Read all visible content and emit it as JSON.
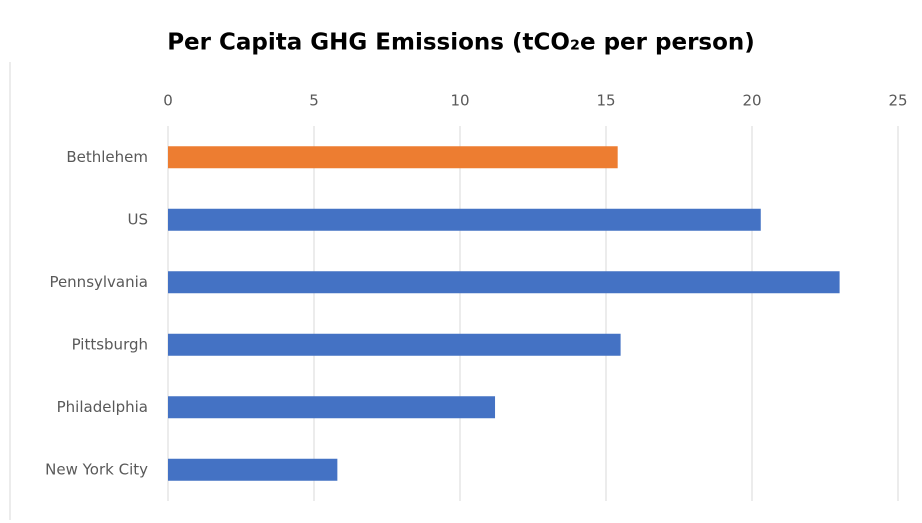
{
  "chart_data": {
    "type": "hbar",
    "title": "Per Capita GHG Emissions (tCO₂e per person)",
    "categories": [
      "Bethlehem",
      "US",
      "Pennsylvania",
      "Pittsburgh",
      "Philadelphia",
      "New York City"
    ],
    "values": [
      15.4,
      20.3,
      23.0,
      15.5,
      11.2,
      5.8
    ],
    "colors": [
      "#ed7d31",
      "#4472c4",
      "#4472c4",
      "#4472c4",
      "#4472c4",
      "#4472c4"
    ],
    "xlim": [
      0,
      25
    ],
    "xticks": [
      0,
      5,
      10,
      15,
      20,
      25
    ],
    "grid": true
  }
}
